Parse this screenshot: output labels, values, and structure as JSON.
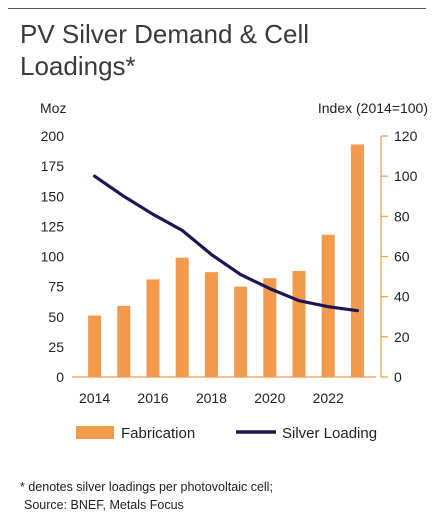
{
  "header": {
    "title_line1": "PV Silver Demand & Cell",
    "title_line2": "Loadings*"
  },
  "chart_data": {
    "type": "bar",
    "title": "PV Silver Demand & Cell Loadings*",
    "left_axis_unit": "Moz",
    "right_axis_unit": "Index (2014=100)",
    "years": [
      2014,
      2015,
      2016,
      2017,
      2018,
      2019,
      2020,
      2021,
      2022,
      2023
    ],
    "x_tick_labels": [
      "2014",
      "2016",
      "2018",
      "2020",
      "2022"
    ],
    "left_ylim": [
      0,
      200
    ],
    "left_ticks": [
      "0",
      "25",
      "50",
      "75",
      "100",
      "125",
      "150",
      "175",
      "200"
    ],
    "right_ylim": [
      0,
      120
    ],
    "right_ticks": [
      "0",
      "20",
      "40",
      "60",
      "80",
      "100",
      "120"
    ],
    "grid": false,
    "legend_position": "bottom",
    "series": [
      {
        "name": "Fabrication",
        "type": "bar",
        "axis": "left",
        "color": "#F39A4C",
        "values": [
          51,
          59,
          81,
          99,
          87,
          75,
          82,
          88,
          118,
          193
        ]
      },
      {
        "name": "Silver Loading",
        "type": "line",
        "axis": "right",
        "color": "#1C1652",
        "values": [
          100,
          90,
          81,
          73,
          61,
          51,
          44,
          38,
          35,
          33
        ]
      }
    ]
  },
  "footnote": {
    "line1": "* denotes silver loadings per photovoltaic cell;",
    "line2": "Source: BNEF, Metals Focus"
  }
}
